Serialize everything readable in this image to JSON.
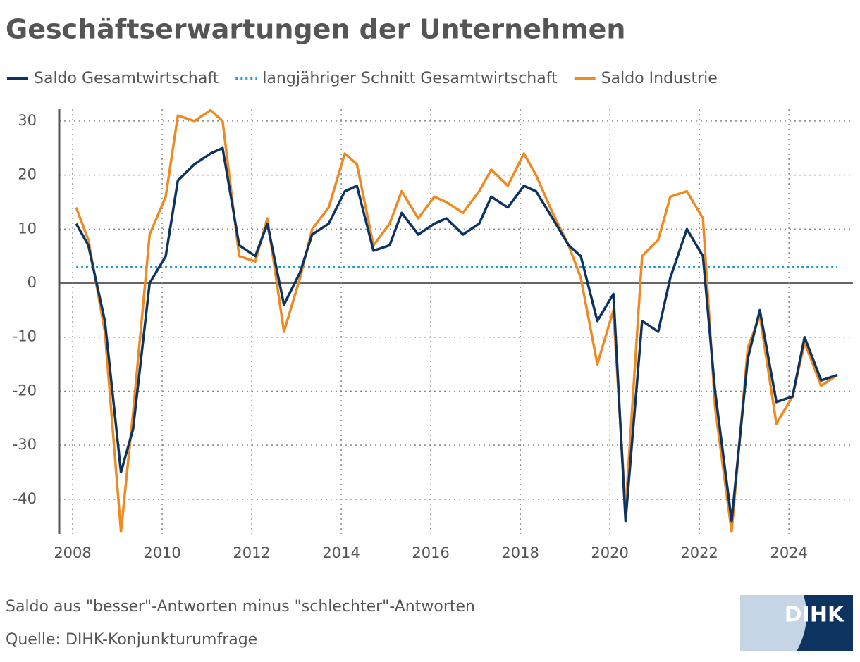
{
  "chart_data": {
    "type": "line",
    "title": "Geschäftserwartungen der Unternehmen",
    "note": "Saldo aus \"besser\"-Antworten minus \"schlechter\"-Antworten",
    "source": "Quelle: DIHK-Konjunkturumfrage",
    "logo": "DIHK",
    "x": [
      2008.08,
      2008.35,
      2008.72,
      2009.08,
      2009.35,
      2009.72,
      2010.08,
      2010.35,
      2010.72,
      2011.08,
      2011.35,
      2011.72,
      2012.08,
      2012.35,
      2012.72,
      2013.08,
      2013.35,
      2013.72,
      2014.08,
      2014.35,
      2014.72,
      2015.08,
      2015.35,
      2015.72,
      2016.08,
      2016.35,
      2016.72,
      2017.08,
      2017.35,
      2017.72,
      2018.08,
      2018.35,
      2018.72,
      2019.08,
      2019.35,
      2019.72,
      2020.08,
      2020.35,
      2020.72,
      2021.08,
      2021.35,
      2021.72,
      2022.08,
      2022.35,
      2022.72,
      2023.08,
      2023.35,
      2023.72,
      2024.08,
      2024.35,
      2024.72,
      2025.08
    ],
    "series": [
      {
        "name": "Saldo Gesamtwirtschaft",
        "color": "#0d3461",
        "style": "solid",
        "values": [
          11,
          7,
          -7,
          -35,
          -27,
          0,
          5,
          19,
          22,
          24,
          25,
          7,
          5,
          11,
          -4,
          2,
          9,
          11,
          17,
          18,
          6,
          7,
          13,
          9,
          11,
          12,
          9,
          11,
          16,
          14,
          18,
          17,
          12,
          7,
          5,
          -7,
          -2,
          -44,
          -7,
          -9,
          1,
          10,
          5,
          -20,
          -44,
          -14,
          -5,
          -22,
          -21,
          -10,
          -18,
          -17
        ]
      },
      {
        "name": "langjähriger Schnitt Gesamtwirtschaft",
        "color": "#1f9fd8",
        "style": "dotted",
        "x": [
          2008.08,
          2025.08
        ],
        "values": [
          3,
          3
        ]
      },
      {
        "name": "Saldo Industrie",
        "color": "#ef8a22",
        "style": "solid",
        "values": [
          14,
          8,
          -9,
          -46,
          -24,
          9,
          16,
          31,
          30,
          32,
          30,
          5,
          4,
          12,
          -9,
          1,
          10,
          14,
          24,
          22,
          7,
          11,
          17,
          12,
          16,
          15,
          13,
          17,
          21,
          18,
          24,
          20,
          13,
          7,
          1,
          -15,
          -5,
          -42,
          5,
          8,
          16,
          17,
          12,
          -23,
          -46,
          -12,
          -6,
          -26,
          -21,
          -11,
          -19,
          -17
        ]
      }
    ],
    "xlim": [
      2007.7,
      2025.43
    ],
    "xticks": [
      2008,
      2010,
      2012,
      2014,
      2016,
      2018,
      2020,
      2022,
      2024
    ],
    "ylim": [
      -46.4,
      32.2
    ],
    "yticks": [
      -40,
      -30,
      -20,
      -10,
      0,
      10,
      20,
      30
    ],
    "grid": true
  }
}
